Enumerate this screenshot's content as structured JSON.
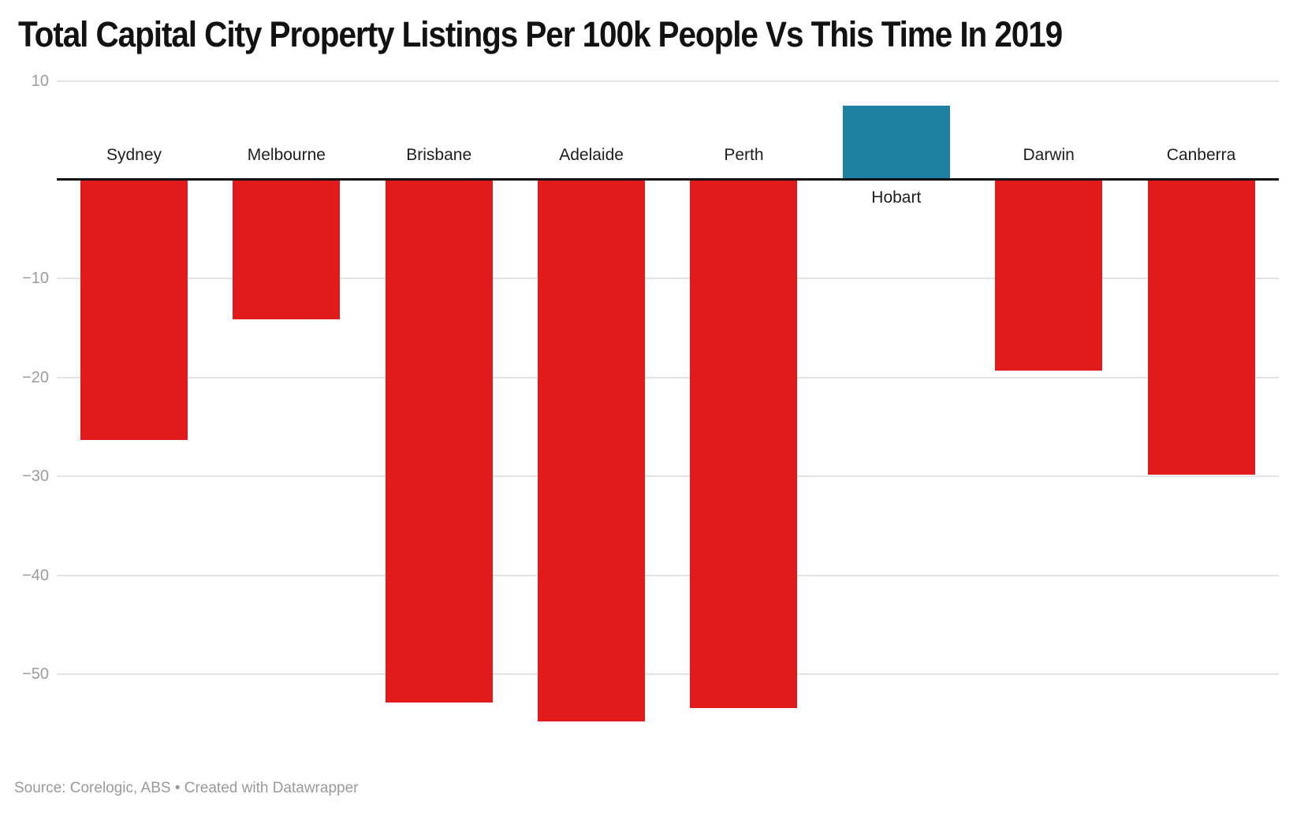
{
  "title": "Total Capital City Property Listings Per 100k People Vs This Time In 2019",
  "footer": {
    "source_label": "Source: Corelogic, ABS • Created with Datawrapper"
  },
  "chart_data": {
    "type": "bar",
    "title": "Total Capital City Property Listings Per 100k People Vs This Time In 2019",
    "categories": [
      "Sydney",
      "Melbourne",
      "Brisbane",
      "Adelaide",
      "Perth",
      "Hobart",
      "Darwin",
      "Canberra"
    ],
    "values": [
      -26.3,
      -14.1,
      -52.9,
      -54.8,
      -53.4,
      7.5,
      -19.3,
      -29.8
    ],
    "xlabel": "",
    "ylabel": "",
    "yticks": [
      10,
      -10,
      -20,
      -30,
      -40,
      -50
    ],
    "ylim": [
      -57,
      12
    ],
    "grid": true,
    "legend_position": "none",
    "baseline": 0,
    "negative_color": "#e11b1c",
    "positive_color": "#1f81a1",
    "gridline_color": "#e2e2e2",
    "zero_line_color": "#111111",
    "source": "Source: Corelogic, ABS • Created with Datawrapper"
  }
}
